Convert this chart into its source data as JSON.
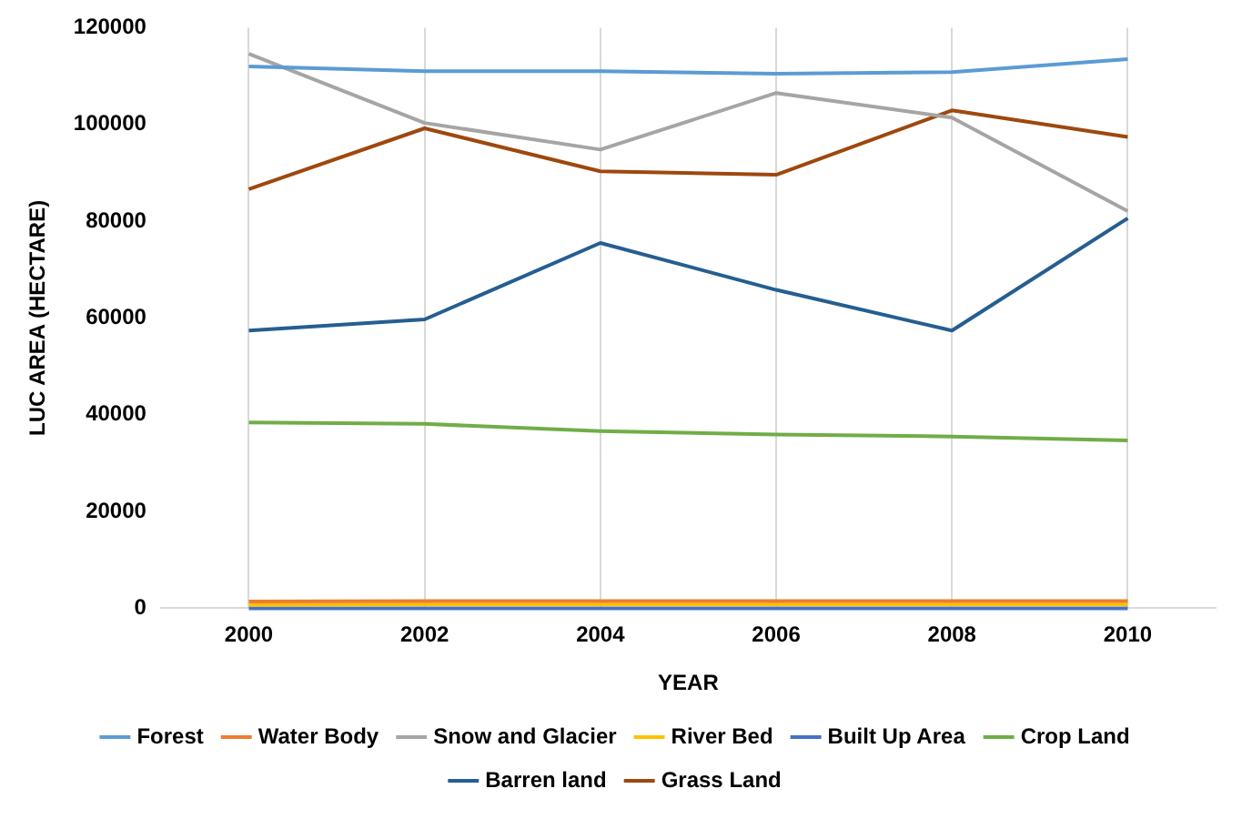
{
  "chart_data": {
    "type": "line",
    "xlabel": "YEAR",
    "ylabel": "LUC AREA (HECTARE)",
    "categories": [
      "2000",
      "2002",
      "2004",
      "2006",
      "2008",
      "2010"
    ],
    "series": [
      {
        "name": "Forest",
        "color": "#5b9bd5",
        "values": [
          112000,
          111000,
          111000,
          110500,
          110800,
          113500
        ]
      },
      {
        "name": "Water Body",
        "color": "#ed7d31",
        "values": [
          1400,
          1500,
          1500,
          1500,
          1500,
          1500
        ]
      },
      {
        "name": "Snow and Glacier",
        "color": "#a5a5a5",
        "values": [
          114600,
          100300,
          94800,
          106500,
          101400,
          82100
        ]
      },
      {
        "name": "River Bed",
        "color": "#ffc000",
        "values": [
          700,
          800,
          800,
          800,
          800,
          800
        ]
      },
      {
        "name": "Built Up Area",
        "color": "#4472c4",
        "values": [
          0,
          0,
          0,
          0,
          0,
          0
        ]
      },
      {
        "name": "Crop Land",
        "color": "#70ad47",
        "values": [
          38400,
          38100,
          36600,
          35900,
          35500,
          34700
        ]
      },
      {
        "name": "Barren land",
        "color": "#255e91",
        "values": [
          57400,
          59700,
          75500,
          65800,
          57400,
          80600
        ]
      },
      {
        "name": "Grass Land",
        "color": "#9e480e",
        "values": [
          86600,
          99200,
          90300,
          89600,
          102900,
          97400
        ]
      }
    ],
    "ylim": [
      0,
      120000
    ],
    "yticks": [
      0,
      20000,
      40000,
      60000,
      80000,
      100000,
      120000
    ],
    "grid": "x",
    "legend": "bottom",
    "marker": "none",
    "line_style": "solid"
  }
}
